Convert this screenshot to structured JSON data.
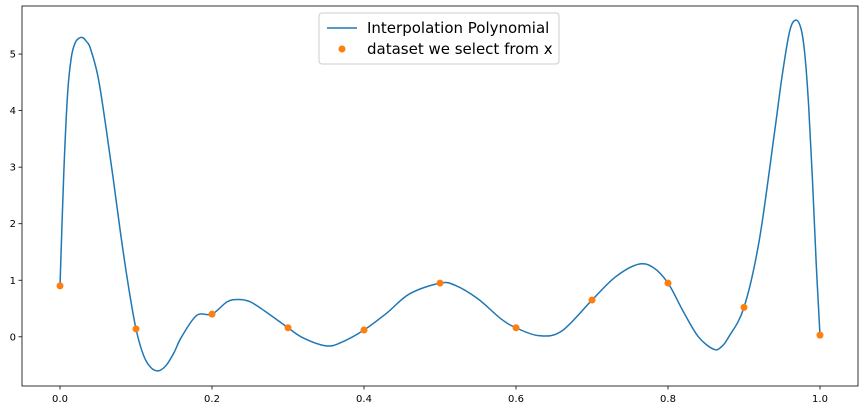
{
  "chart_data": {
    "type": "line",
    "title": "",
    "xlabel": "",
    "ylabel": "",
    "xlim": [
      -0.05,
      1.05
    ],
    "ylim": [
      -0.87,
      5.85
    ],
    "xticks": [
      0.0,
      0.2,
      0.4,
      0.6,
      0.8,
      1.0
    ],
    "xtick_labels": [
      "0.0",
      "0.2",
      "0.4",
      "0.6",
      "0.8",
      "1.0"
    ],
    "yticks": [
      0,
      1,
      2,
      3,
      4,
      5
    ],
    "ytick_labels": [
      "0",
      "1",
      "2",
      "3",
      "4",
      "5"
    ],
    "grid": false,
    "legend_position": "top-center",
    "series": [
      {
        "name": "Interpolation Polynomial",
        "kind": "line",
        "color": "#1f77b4",
        "x": [
          0.0,
          0.005,
          0.01,
          0.015,
          0.02,
          0.025,
          0.03,
          0.035,
          0.04,
          0.05,
          0.06,
          0.07,
          0.08,
          0.09,
          0.1,
          0.11,
          0.12,
          0.13,
          0.14,
          0.15,
          0.16,
          0.18,
          0.2,
          0.22,
          0.235,
          0.25,
          0.27,
          0.3,
          0.32,
          0.35,
          0.37,
          0.4,
          0.43,
          0.46,
          0.5,
          0.52,
          0.55,
          0.58,
          0.6,
          0.63,
          0.66,
          0.7,
          0.73,
          0.76,
          0.78,
          0.8,
          0.82,
          0.84,
          0.86,
          0.87,
          0.88,
          0.9,
          0.92,
          0.94,
          0.95,
          0.96,
          0.968,
          0.975,
          0.98,
          0.985,
          0.99,
          0.995,
          1.0
        ],
        "y": [
          0.9,
          2.9,
          4.3,
          4.95,
          5.2,
          5.28,
          5.29,
          5.22,
          5.1,
          4.6,
          3.75,
          2.8,
          1.8,
          0.9,
          0.14,
          -0.33,
          -0.55,
          -0.6,
          -0.5,
          -0.28,
          0.0,
          0.38,
          0.4,
          0.62,
          0.66,
          0.62,
          0.45,
          0.16,
          -0.02,
          -0.16,
          -0.1,
          0.12,
          0.42,
          0.76,
          0.95,
          0.91,
          0.67,
          0.32,
          0.16,
          0.02,
          0.1,
          0.65,
          1.05,
          1.28,
          1.23,
          0.95,
          0.45,
          0.0,
          -0.22,
          -0.18,
          0.0,
          0.52,
          1.7,
          3.6,
          4.6,
          5.4,
          5.6,
          5.45,
          5.0,
          4.1,
          2.8,
          1.3,
          0.03
        ]
      },
      {
        "name": "dataset we select from x",
        "kind": "scatter",
        "color": "#ff7f0e",
        "x": [
          0.0,
          0.1,
          0.2,
          0.3,
          0.4,
          0.5,
          0.6,
          0.7,
          0.8,
          0.9,
          1.0
        ],
        "y": [
          0.9,
          0.14,
          0.4,
          0.16,
          0.12,
          0.95,
          0.16,
          0.65,
          0.95,
          0.52,
          0.03
        ]
      }
    ]
  }
}
